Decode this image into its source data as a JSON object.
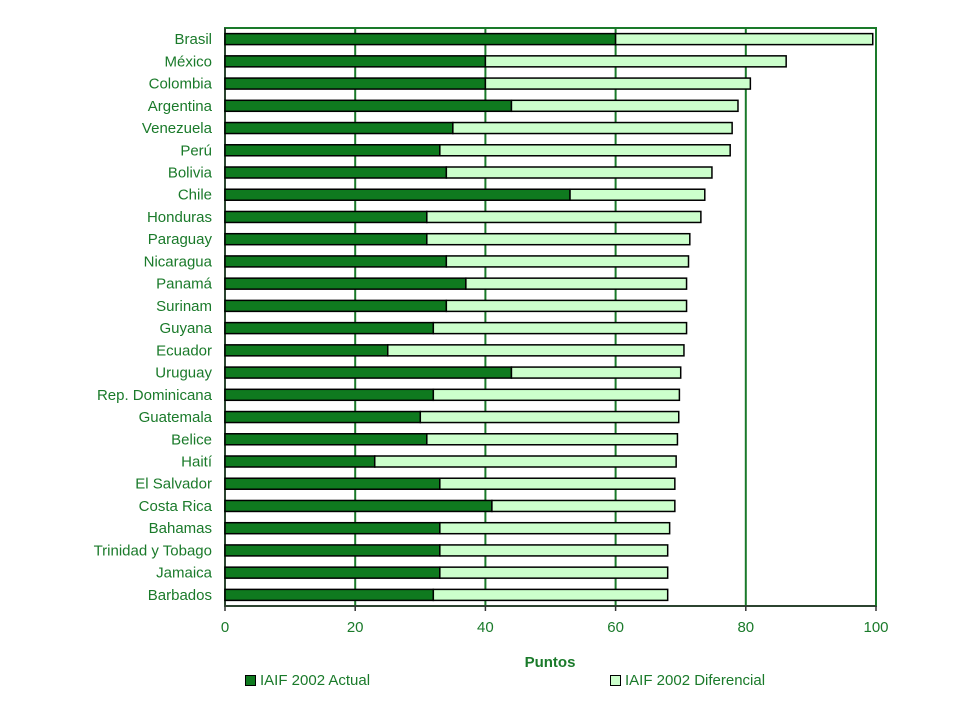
{
  "chart_data": {
    "type": "bar",
    "orientation": "horizontal",
    "stacked": true,
    "categories": [
      "Brasil",
      "México",
      "Colombia",
      "Argentina",
      "Venezuela",
      "Perú",
      "Bolivia",
      "Chile",
      "Honduras",
      "Paraguay",
      "Nicaragua",
      "Panamá",
      "Surinam",
      "Guyana",
      "Ecuador",
      "Uruguay",
      "Rep. Dominicana",
      "Guatemala",
      "Belice",
      "Haití",
      "El Salvador",
      "Costa Rica",
      "Bahamas",
      "Trinidad y Tobago",
      "Jamaica",
      "Barbados"
    ],
    "series": [
      {
        "name": "IAIF 2002 Actual",
        "values": [
          60,
          40,
          40,
          44,
          35,
          33,
          34,
          53,
          31,
          31,
          34,
          37,
          34,
          32,
          25,
          44,
          32,
          30,
          31,
          23,
          33,
          41,
          33,
          33,
          33,
          32
        ]
      },
      {
        "name": "IAIF 2002 Diferencial",
        "values": [
          39.5,
          46.2,
          40.7,
          34.8,
          42.9,
          44.6,
          40.8,
          20.7,
          42.1,
          40.4,
          37.2,
          33.9,
          36.9,
          38.9,
          45.5,
          26,
          37.8,
          39.7,
          38.5,
          46.3,
          36.1,
          28.1,
          35.3,
          35,
          35,
          36
        ]
      }
    ],
    "xlabel": "Puntos",
    "xlim": [
      0,
      100
    ],
    "xticks": [
      0,
      20,
      40,
      60,
      80,
      100
    ],
    "grid": true,
    "legend_position": "bottom",
    "colors": {
      "text": "#1a7a2a",
      "actual": "#0f7a1f",
      "diferencial": "#ccffcc",
      "bar_border": "#000000",
      "frame": "#1a7a2a"
    }
  }
}
